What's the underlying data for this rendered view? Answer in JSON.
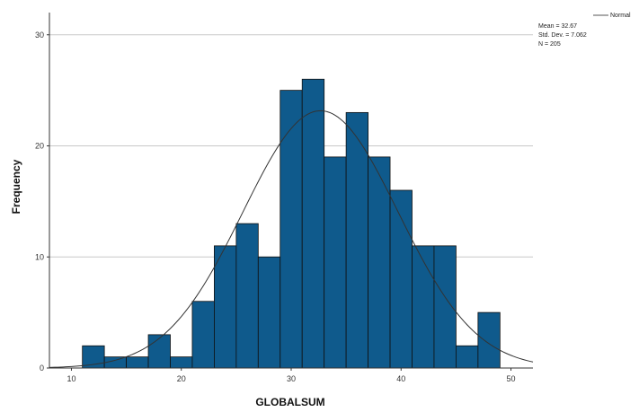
{
  "chart_data": {
    "type": "bar",
    "subtype": "histogram",
    "xlabel": "GLOBALSUM",
    "ylabel": "Frequency",
    "xlim": [
      8,
      52
    ],
    "ylim": [
      0,
      32
    ],
    "xticks": [
      "10",
      "20",
      "30",
      "40",
      "50"
    ],
    "yticks": [
      "0",
      "10",
      "20",
      "30"
    ],
    "grid": "horizontal",
    "bin_width": 2,
    "bins": [
      {
        "x0": 11,
        "x1": 13,
        "count": 2
      },
      {
        "x0": 13,
        "x1": 15,
        "count": 1
      },
      {
        "x0": 15,
        "x1": 17,
        "count": 1
      },
      {
        "x0": 17,
        "x1": 19,
        "count": 3
      },
      {
        "x0": 19,
        "x1": 21,
        "count": 1
      },
      {
        "x0": 21,
        "x1": 23,
        "count": 6
      },
      {
        "x0": 23,
        "x1": 25,
        "count": 11
      },
      {
        "x0": 25,
        "x1": 27,
        "count": 13
      },
      {
        "x0": 27,
        "x1": 29,
        "count": 10
      },
      {
        "x0": 29,
        "x1": 31,
        "count": 25
      },
      {
        "x0": 31,
        "x1": 33,
        "count": 26
      },
      {
        "x0": 33,
        "x1": 35,
        "count": 19
      },
      {
        "x0": 35,
        "x1": 37,
        "count": 23
      },
      {
        "x0": 37,
        "x1": 39,
        "count": 19
      },
      {
        "x0": 39,
        "x1": 41,
        "count": 16
      },
      {
        "x0": 41,
        "x1": 43,
        "count": 11
      },
      {
        "x0": 43,
        "x1": 45,
        "count": 11
      },
      {
        "x0": 45,
        "x1": 47,
        "count": 2
      },
      {
        "x0": 47,
        "x1": 49,
        "count": 5
      }
    ],
    "normal_curve": {
      "mean": 32.67,
      "sd": 7.062,
      "n": 205
    },
    "legend": {
      "position": "top-right",
      "entry": "Normal",
      "stats": [
        "Mean = 32.67",
        "Std. Dev. = 7.062",
        "N = 205"
      ]
    },
    "colors": {
      "bar_fill": "#0f5a8c",
      "bar_edge": "#101010",
      "curve": "#333333",
      "grid": "#c8c8c8",
      "axis": "#333333"
    }
  }
}
